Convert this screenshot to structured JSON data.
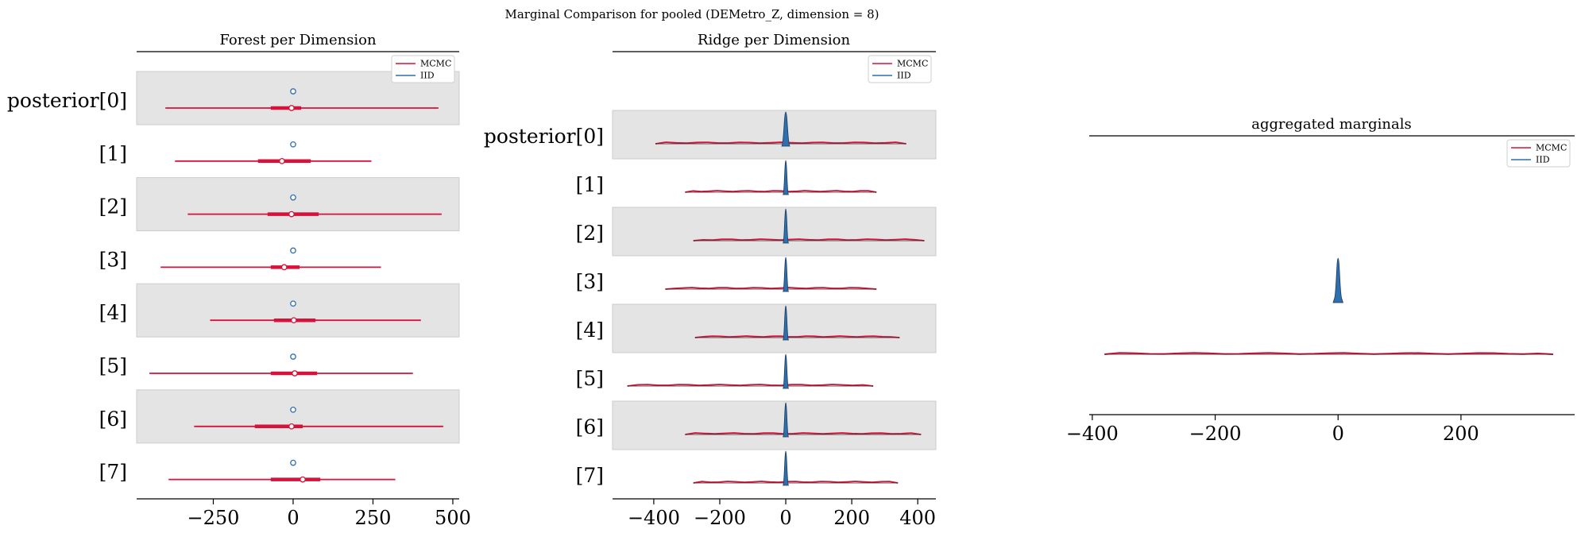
{
  "suptitle": "Marginal Comparison for pooled (DEMetro_Z, dimension = 8)",
  "colors": {
    "mcmc": "#d6113a",
    "iid": "#2e6fae",
    "band": "#e4e4e4"
  },
  "legend": {
    "labels": [
      "MCMC",
      "IID"
    ]
  },
  "chart_data": [
    {
      "type": "forest",
      "title": "Forest per Dimension",
      "xlim": [
        -490,
        520
      ],
      "xticks": [
        -250,
        0,
        250,
        500
      ],
      "xtick_labels": [
        "−250",
        "0",
        "250",
        "500"
      ],
      "rows": [
        "posterior[0]",
        "[1]",
        "[2]",
        "[3]",
        "[4]",
        "[5]",
        "[6]",
        "[7]"
      ],
      "series": [
        {
          "name": "MCMC",
          "means": [
            -5,
            -35,
            -5,
            -28,
            2,
            5,
            -5,
            30
          ],
          "hdi_low": [
            -400,
            -370,
            -330,
            -415,
            -260,
            -450,
            -310,
            -390
          ],
          "hdi_high": [
            455,
            245,
            465,
            275,
            400,
            375,
            470,
            320
          ],
          "iqr_low": [
            -70,
            -110,
            -80,
            -70,
            -60,
            -70,
            -120,
            -70
          ],
          "iqr_high": [
            25,
            55,
            80,
            20,
            70,
            75,
            30,
            85
          ]
        },
        {
          "name": "IID",
          "means": [
            0,
            0,
            0,
            0,
            0,
            0,
            0,
            0
          ]
        }
      ],
      "grid": false,
      "legend_position": "upper right"
    },
    {
      "type": "ridgeline",
      "title": "Ridge per Dimension",
      "xlim": [
        -525,
        455
      ],
      "xticks": [
        -400,
        -200,
        0,
        200,
        400
      ],
      "xtick_labels": [
        "−400",
        "−200",
        "0",
        "200",
        "400"
      ],
      "rows": [
        "posterior[0]",
        "[1]",
        "[2]",
        "[3]",
        "[4]",
        "[5]",
        "[6]",
        "[7]"
      ],
      "series": [
        {
          "name": "MCMC",
          "low": [
            -395,
            -305,
            -280,
            -365,
            -275,
            -480,
            -305,
            -280
          ],
          "high": [
            365,
            275,
            420,
            275,
            345,
            265,
            410,
            340
          ]
        },
        {
          "name": "IID",
          "center": [
            0,
            0,
            0,
            0,
            0,
            0,
            0,
            0
          ],
          "spread": [
            12,
            8,
            8,
            8,
            8,
            8,
            8,
            8
          ]
        }
      ],
      "grid": false,
      "legend_position": "upper right"
    },
    {
      "type": "density",
      "title": "aggregated marginals",
      "xlim": [
        -405,
        385
      ],
      "xticks": [
        -400,
        -200,
        0,
        200
      ],
      "xtick_labels": [
        "−400",
        "−200",
        "0",
        "200"
      ],
      "series": [
        {
          "name": "MCMC",
          "low": [
            -380
          ],
          "high": [
            350
          ]
        },
        {
          "name": "IID",
          "center": [
            0
          ],
          "spread": [
            8
          ]
        }
      ],
      "grid": false,
      "legend_position": "upper right"
    }
  ]
}
